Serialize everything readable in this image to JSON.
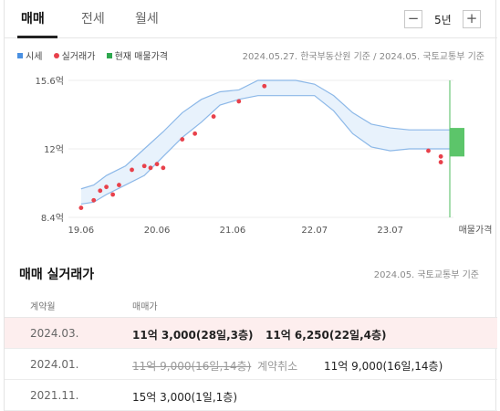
{
  "tabs": [
    {
      "label": "매매",
      "active": true
    },
    {
      "label": "전세",
      "active": false
    },
    {
      "label": "월세",
      "active": false
    }
  ],
  "period": {
    "minus_label": "−",
    "value": "5년",
    "plus_label": "+"
  },
  "legend": [
    {
      "label": "시세",
      "color": "#4a90e2",
      "shape": "square"
    },
    {
      "label": "실거래가",
      "color": "#e8414b",
      "shape": "dot"
    },
    {
      "label": "현재 매물가격",
      "color": "#2fa84f",
      "shape": "square"
    }
  ],
  "source_note": "2024.05.27. 한국부동산원 기준 / 2024.05. 국토교통부 기준",
  "chart_data": {
    "type": "area",
    "x_ticks": [
      "19.06",
      "20.06",
      "21.06",
      "22.07",
      "23.07"
    ],
    "x_extra_label": "매물가격",
    "y_ticks": [
      "15.6억",
      "12억",
      "8.4억"
    ],
    "ylim": [
      8.4,
      15.6
    ],
    "y_unit": "억",
    "grid": true,
    "series": [
      {
        "kind": "price_band",
        "x": [
          "2019-06",
          "2019-08",
          "2019-10",
          "2020-01",
          "2020-04",
          "2020-07",
          "2020-10",
          "2021-01",
          "2021-04",
          "2021-07",
          "2021-10",
          "2022-01",
          "2022-04",
          "2022-07",
          "2022-10",
          "2023-01",
          "2023-04",
          "2023-07",
          "2023-10",
          "2024-01",
          "2024-05"
        ],
        "upper": [
          9.9,
          10.1,
          10.6,
          11.1,
          12.0,
          12.9,
          13.9,
          14.6,
          15.0,
          15.1,
          15.6,
          15.6,
          15.6,
          15.4,
          14.8,
          13.9,
          13.3,
          13.1,
          13.0,
          13.0,
          13.0
        ],
        "lower": [
          9.1,
          9.2,
          9.6,
          10.1,
          10.6,
          11.6,
          12.6,
          13.4,
          14.3,
          14.6,
          14.8,
          14.8,
          14.8,
          14.8,
          14.0,
          12.8,
          12.1,
          11.9,
          12.0,
          12.0,
          12.0
        ]
      },
      {
        "kind": "transactions",
        "x": [
          "2019-06",
          "2019-08",
          "2019-09",
          "2019-10",
          "2019-11",
          "2019-12",
          "2020-02",
          "2020-04",
          "2020-05",
          "2020-06",
          "2020-07",
          "2020-10",
          "2020-12",
          "2021-03",
          "2021-07",
          "2021-11",
          "2024-01",
          "2024-03",
          "2024-03"
        ],
        "y": [
          8.9,
          9.3,
          9.8,
          10.0,
          9.6,
          10.1,
          10.9,
          11.1,
          11.0,
          11.2,
          11.0,
          12.5,
          12.8,
          13.7,
          14.5,
          15.3,
          11.9,
          11.6,
          11.3
        ]
      },
      {
        "kind": "current_listing",
        "x": "2024-05",
        "range": [
          11.6,
          13.1
        ]
      }
    ]
  },
  "trade_section": {
    "title": "매매 실거래가",
    "source": "2024.05. 국토교통부 기준",
    "headers": [
      "계약월",
      "매매가"
    ],
    "rows": [
      {
        "date": "2024.03.",
        "entries": [
          "11억 3,000(28일,3층)",
          "11억 6,250(22일,4층)"
        ],
        "highlight": true
      },
      {
        "date": "2024.01.",
        "struck": "11억 9,000(16일,14층)",
        "cancel": "계약취소",
        "entries": [
          "11억 9,000(16일,14층)"
        ],
        "highlight": false
      },
      {
        "date": "2021.11.",
        "entries": [
          "15억 3,000(1일,1층)"
        ],
        "highlight": false
      }
    ]
  }
}
